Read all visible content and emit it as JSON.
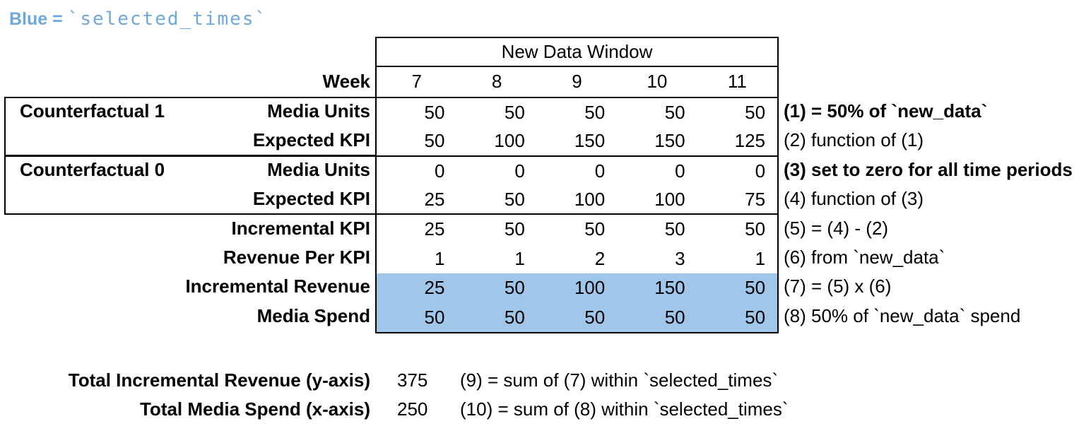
{
  "legend": {
    "prefix": "Blue = ",
    "code": "`selected_times`"
  },
  "colors": {
    "highlight_blue": "#A0C6EA",
    "legend_text_blue": "#6FA8DC",
    "border": "#000000"
  },
  "table": {
    "window_header": "New Data Window",
    "week_label": "Week",
    "weeks": [
      "7",
      "8",
      "9",
      "10",
      "11"
    ],
    "rows": [
      {
        "group": "Counterfactual 1",
        "label": "Media Units",
        "values": [
          "50",
          "50",
          "50",
          "50",
          "50"
        ],
        "annotation": "(1) = 50% of `new_data`",
        "annotation_bold": true,
        "highlight": false
      },
      {
        "group": "",
        "label": "Expected KPI",
        "values": [
          "50",
          "100",
          "150",
          "150",
          "125"
        ],
        "annotation": "(2) function of (1)",
        "annotation_bold": false,
        "highlight": false
      },
      {
        "group": "Counterfactual 0",
        "label": "Media Units",
        "values": [
          "0",
          "0",
          "0",
          "0",
          "0"
        ],
        "annotation": "(3) set to zero for all time periods",
        "annotation_bold": true,
        "highlight": false
      },
      {
        "group": "",
        "label": "Expected KPI",
        "values": [
          "25",
          "50",
          "100",
          "100",
          "75"
        ],
        "annotation": "(4) function of (3)",
        "annotation_bold": false,
        "highlight": false
      },
      {
        "group": "",
        "label": "Incremental KPI",
        "values": [
          "25",
          "50",
          "50",
          "50",
          "50"
        ],
        "annotation": "(5) = (4) - (2)",
        "annotation_bold": false,
        "highlight": false
      },
      {
        "group": "",
        "label": "Revenue Per KPI",
        "values": [
          "1",
          "1",
          "2",
          "3",
          "1"
        ],
        "annotation": "(6) from `new_data`",
        "annotation_bold": false,
        "highlight": false
      },
      {
        "group": "",
        "label": "Incremental Revenue",
        "values": [
          "25",
          "50",
          "100",
          "150",
          "50"
        ],
        "annotation": "(7) = (5) x (6)",
        "annotation_bold": false,
        "highlight": true
      },
      {
        "group": "",
        "label": "Media Spend",
        "values": [
          "50",
          "50",
          "50",
          "50",
          "50"
        ],
        "annotation": "(8) 50% of `new_data` spend",
        "annotation_bold": false,
        "highlight": true
      }
    ]
  },
  "totals": [
    {
      "label": "Total Incremental Revenue (y-axis)",
      "value": "375",
      "note": "(9) = sum of (7) within `selected_times`"
    },
    {
      "label": "Total Media Spend (x-axis)",
      "value": "250",
      "note": "(10) = sum of (8) within `selected_times`"
    }
  ]
}
